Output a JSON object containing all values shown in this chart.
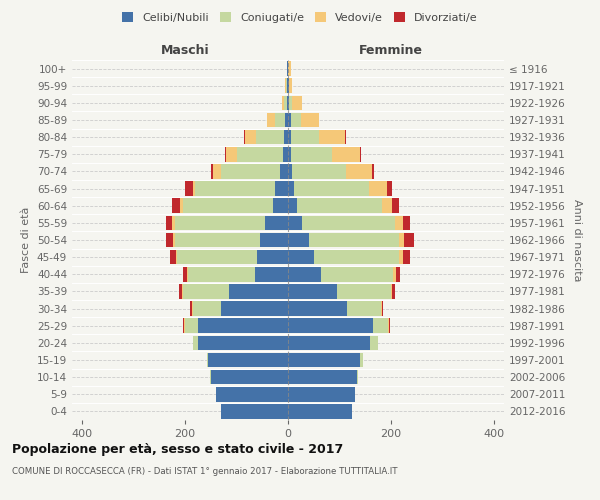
{
  "age_groups": [
    "0-4",
    "5-9",
    "10-14",
    "15-19",
    "20-24",
    "25-29",
    "30-34",
    "35-39",
    "40-44",
    "45-49",
    "50-54",
    "55-59",
    "60-64",
    "65-69",
    "70-74",
    "75-79",
    "80-84",
    "85-89",
    "90-94",
    "95-99",
    "100+"
  ],
  "birth_years": [
    "2012-2016",
    "2007-2011",
    "2002-2006",
    "1997-2001",
    "1992-1996",
    "1987-1991",
    "1982-1986",
    "1977-1981",
    "1972-1976",
    "1967-1971",
    "1962-1966",
    "1957-1961",
    "1952-1956",
    "1947-1951",
    "1942-1946",
    "1937-1941",
    "1932-1936",
    "1927-1931",
    "1922-1926",
    "1917-1921",
    "≤ 1916"
  ],
  "maschi": {
    "celibi": [
      130,
      140,
      150,
      155,
      175,
      175,
      130,
      115,
      65,
      60,
      55,
      45,
      30,
      25,
      15,
      10,
      8,
      5,
      2,
      2,
      1
    ],
    "coniugati": [
      0,
      0,
      2,
      3,
      10,
      25,
      55,
      90,
      130,
      155,
      165,
      175,
      175,
      155,
      115,
      90,
      55,
      20,
      5,
      2,
      0
    ],
    "vedovi": [
      0,
      0,
      0,
      0,
      0,
      2,
      2,
      2,
      2,
      2,
      3,
      5,
      5,
      5,
      15,
      20,
      20,
      15,
      5,
      2,
      0
    ],
    "divorziati": [
      0,
      0,
      0,
      0,
      0,
      2,
      3,
      5,
      8,
      12,
      15,
      12,
      15,
      15,
      5,
      3,
      2,
      0,
      0,
      0,
      0
    ]
  },
  "femmine": {
    "nubili": [
      125,
      130,
      135,
      140,
      160,
      165,
      115,
      95,
      65,
      50,
      40,
      28,
      18,
      12,
      8,
      5,
      5,
      5,
      2,
      2,
      0
    ],
    "coniugate": [
      0,
      0,
      2,
      5,
      15,
      30,
      65,
      105,
      140,
      165,
      175,
      180,
      165,
      145,
      105,
      80,
      55,
      20,
      5,
      0,
      0
    ],
    "vedove": [
      0,
      0,
      0,
      0,
      0,
      2,
      2,
      3,
      5,
      8,
      10,
      15,
      20,
      35,
      50,
      55,
      50,
      35,
      20,
      5,
      5
    ],
    "divorziate": [
      0,
      0,
      0,
      0,
      0,
      2,
      3,
      5,
      8,
      15,
      20,
      15,
      12,
      10,
      5,
      2,
      2,
      0,
      0,
      0,
      0
    ]
  },
  "colors": {
    "celibi": "#4472a8",
    "coniugati": "#c5d8a0",
    "vedovi": "#f5c878",
    "divorziati": "#c0282d"
  },
  "xlim": [
    -420,
    420
  ],
  "xticks": [
    -400,
    -200,
    0,
    200,
    400
  ],
  "xticklabels": [
    "400",
    "200",
    "0",
    "200",
    "400"
  ],
  "title": "Popolazione per età, sesso e stato civile - 2017",
  "subtitle": "COMUNE DI ROCCASECCA (FR) - Dati ISTAT 1° gennaio 2017 - Elaborazione TUTTITALIA.IT",
  "ylabel_left": "Fasce di età",
  "ylabel_right": "Anni di nascita",
  "maschi_label": "Maschi",
  "femmine_label": "Femmine",
  "legend_labels": [
    "Celibi/Nubili",
    "Coniugati/e",
    "Vedovi/e",
    "Divorziati/e"
  ],
  "bg_color": "#f5f5f0",
  "plot_bg": "#f5f5f0"
}
